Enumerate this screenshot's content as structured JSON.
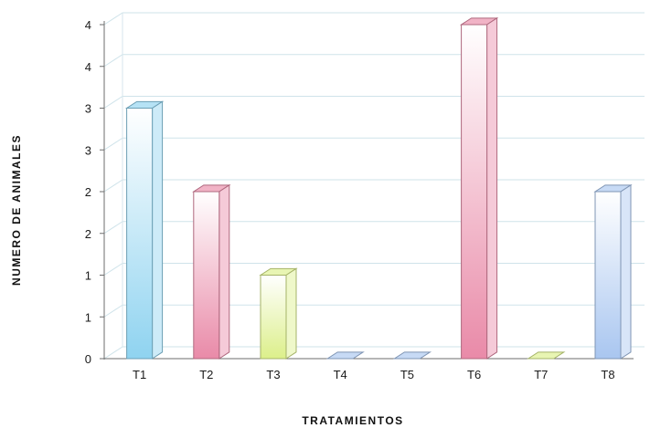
{
  "chart_data": {
    "type": "bar",
    "categories": [
      "T1",
      "T2",
      "T3",
      "T4",
      "T5",
      "T6",
      "T7",
      "T8"
    ],
    "values": [
      3,
      2,
      1,
      0,
      0,
      4,
      0,
      2
    ],
    "y_tick_labels": [
      "0",
      "1",
      "1",
      "2",
      "2",
      "3",
      "3",
      "4",
      "4"
    ],
    "ylim": [
      0,
      4
    ],
    "xlabel": "TRATAMIENTOS",
    "ylabel": "NUMERO DE ANIMALES",
    "grid": true,
    "colors": [
      "#8fd3f0",
      "#e98aa8",
      "#dcef8a",
      "#a9c6f0",
      "#a9c6f0",
      "#e98aa8",
      "#dcef8a",
      "#a9c6f0"
    ]
  }
}
